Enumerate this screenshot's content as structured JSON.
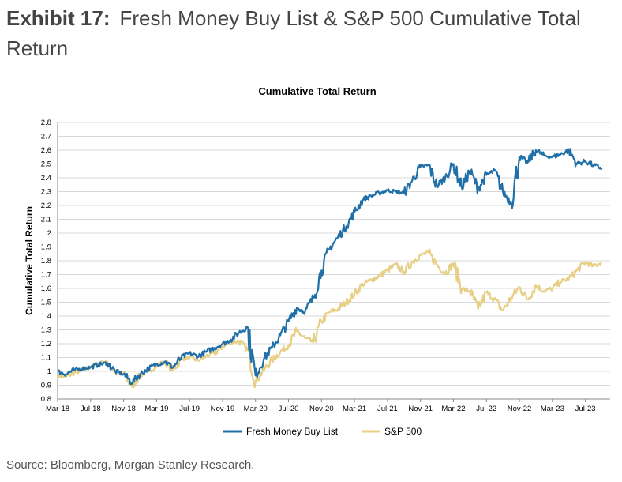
{
  "exhibit": {
    "label": "Exhibit 17:",
    "title": "Fresh Money Buy List & S&P 500 Cumulative Total Return"
  },
  "source": "Source: Bloomberg, Morgan Stanley Research.",
  "chart_data": {
    "type": "line",
    "title": "Cumulative Total Return",
    "ylabel": "Cumulative Total Return",
    "xlabel": "",
    "ylim": [
      0.8,
      2.8
    ],
    "ytick_step": 0.1,
    "yticks": [
      "0.8",
      "0.9",
      "1",
      "1.1",
      "1.2",
      "1.3",
      "1.4",
      "1.5",
      "1.6",
      "1.7",
      "1.8",
      "1.9",
      "2",
      "2.1",
      "2.2",
      "2.3",
      "2.4",
      "2.5",
      "2.6",
      "2.7",
      "2.8"
    ],
    "xticks": [
      "Mar-18",
      "Jul-18",
      "Nov-18",
      "Mar-19",
      "Jul-19",
      "Nov-19",
      "Mar-20",
      "Jul-20",
      "Nov-20",
      "Mar-21",
      "Jul-21",
      "Nov-21",
      "Mar-22",
      "Jul-22",
      "Nov-22",
      "Mar-23",
      "Jul-23"
    ],
    "grid": true,
    "legend": "bottom",
    "colors": {
      "fresh": "#1F6FA8",
      "spx": "#E8CF86",
      "grid": "#D9D9D9",
      "axis": "#888888"
    },
    "x": [
      "2018-03",
      "2018-04",
      "2018-05",
      "2018-06",
      "2018-07",
      "2018-08",
      "2018-09",
      "2018-10",
      "2018-11",
      "2018-12",
      "2019-01",
      "2019-02",
      "2019-03",
      "2019-04",
      "2019-05",
      "2019-06",
      "2019-07",
      "2019-08",
      "2019-09",
      "2019-10",
      "2019-11",
      "2019-12",
      "2020-01",
      "2020-02",
      "2020-03",
      "2020-04",
      "2020-05",
      "2020-06",
      "2020-07",
      "2020-08",
      "2020-09",
      "2020-10",
      "2020-11",
      "2020-12",
      "2021-01",
      "2021-02",
      "2021-03",
      "2021-04",
      "2021-05",
      "2021-06",
      "2021-07",
      "2021-08",
      "2021-09",
      "2021-10",
      "2021-11",
      "2021-12",
      "2022-01",
      "2022-02",
      "2022-03",
      "2022-04",
      "2022-05",
      "2022-06",
      "2022-07",
      "2022-08",
      "2022-09",
      "2022-10",
      "2022-11",
      "2022-12",
      "2023-01",
      "2023-02",
      "2023-03",
      "2023-04",
      "2023-05",
      "2023-06",
      "2023-07",
      "2023-08",
      "2023-09"
    ],
    "series": [
      {
        "name": "Fresh Money Buy List",
        "values": [
          1.0,
          0.98,
          1.01,
          1.02,
          1.03,
          1.05,
          1.06,
          1.0,
          0.98,
          0.92,
          0.98,
          1.02,
          1.05,
          1.07,
          1.03,
          1.1,
          1.13,
          1.11,
          1.14,
          1.17,
          1.2,
          1.23,
          1.28,
          1.32,
          0.97,
          1.09,
          1.17,
          1.26,
          1.36,
          1.46,
          1.43,
          1.53,
          1.73,
          1.89,
          1.97,
          2.05,
          2.15,
          2.24,
          2.27,
          2.29,
          2.31,
          2.3,
          2.29,
          2.38,
          2.48,
          2.49,
          2.34,
          2.4,
          2.5,
          2.33,
          2.45,
          2.32,
          2.42,
          2.45,
          2.3,
          2.22,
          2.55,
          2.51,
          2.6,
          2.56,
          2.55,
          2.57,
          2.6,
          2.5,
          2.52,
          2.49,
          2.47
        ]
      },
      {
        "name": "S&P 500",
        "values": [
          0.97,
          0.96,
          0.99,
          1.01,
          1.03,
          1.06,
          1.07,
          0.99,
          0.98,
          0.89,
          0.97,
          1.0,
          1.04,
          1.07,
          1.01,
          1.09,
          1.1,
          1.08,
          1.11,
          1.13,
          1.18,
          1.21,
          1.22,
          1.16,
          0.93,
          1.01,
          1.08,
          1.14,
          1.19,
          1.29,
          1.24,
          1.21,
          1.36,
          1.43,
          1.45,
          1.5,
          1.56,
          1.63,
          1.66,
          1.69,
          1.73,
          1.77,
          1.72,
          1.79,
          1.84,
          1.86,
          1.77,
          1.71,
          1.78,
          1.6,
          1.58,
          1.45,
          1.57,
          1.52,
          1.44,
          1.53,
          1.61,
          1.52,
          1.62,
          1.58,
          1.6,
          1.65,
          1.67,
          1.73,
          1.79,
          1.76,
          1.79
        ]
      }
    ]
  }
}
